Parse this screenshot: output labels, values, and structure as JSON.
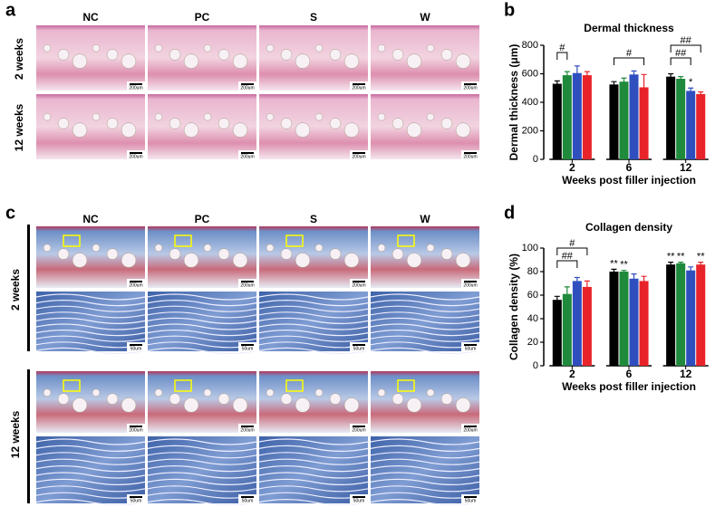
{
  "panels": {
    "a": {
      "label": "a",
      "columns": [
        "NC",
        "PC",
        "S",
        "W"
      ],
      "rows": [
        "2 weeks",
        "12 weeks"
      ],
      "scale_bar": "200um"
    },
    "b": {
      "label": "b"
    },
    "c": {
      "label": "c",
      "columns": [
        "NC",
        "PC",
        "S",
        "W"
      ],
      "rows": [
        "2 weeks",
        "12 weeks"
      ],
      "scale_bar_low": "200um",
      "scale_bar_high": "50um"
    },
    "d": {
      "label": "d"
    }
  },
  "chart_data": [
    {
      "type": "bar",
      "title": "Dermal thickness",
      "x_label": "Weeks post filler injection",
      "y_label": "Dermal thickness (μm)",
      "categories": [
        "2",
        "6",
        "12"
      ],
      "series": [
        {
          "color": "#000000",
          "values": [
            530,
            525,
            580
          ],
          "errors": [
            20,
            20,
            20
          ]
        },
        {
          "color": "#1f8a3c",
          "values": [
            590,
            545,
            565
          ],
          "errors": [
            25,
            25,
            15
          ]
        },
        {
          "color": "#2f4fbf",
          "values": [
            605,
            595,
            480
          ],
          "errors": [
            50,
            25,
            20
          ]
        },
        {
          "color": "#e8242a",
          "values": [
            590,
            505,
            458
          ],
          "errors": [
            25,
            90,
            15
          ]
        }
      ],
      "ylim": [
        0,
        800
      ],
      "yticks": [
        0,
        200,
        400,
        600,
        800
      ],
      "annotations": [
        "#",
        "#",
        "##",
        "##",
        "*"
      ]
    },
    {
      "type": "bar",
      "title": "Collagen density",
      "x_label": "Weeks post filler injection",
      "y_label": "Collagen density (%)",
      "categories": [
        "2",
        "6",
        "12"
      ],
      "series": [
        {
          "color": "#000000",
          "values": [
            56,
            80,
            86
          ],
          "errors": [
            3,
            2,
            2
          ]
        },
        {
          "color": "#1f8a3c",
          "values": [
            61,
            80,
            87
          ],
          "errors": [
            6,
            1,
            1
          ]
        },
        {
          "color": "#2f4fbf",
          "values": [
            72,
            74,
            81
          ],
          "errors": [
            3,
            4,
            3
          ]
        },
        {
          "color": "#e8242a",
          "values": [
            67,
            72,
            86
          ],
          "errors": [
            5,
            4,
            2
          ]
        }
      ],
      "ylim": [
        0,
        100
      ],
      "yticks": [
        0,
        20,
        40,
        60,
        80,
        100
      ],
      "annotations": [
        "#",
        "##",
        "**",
        "**",
        "**",
        "**",
        "**"
      ]
    }
  ]
}
